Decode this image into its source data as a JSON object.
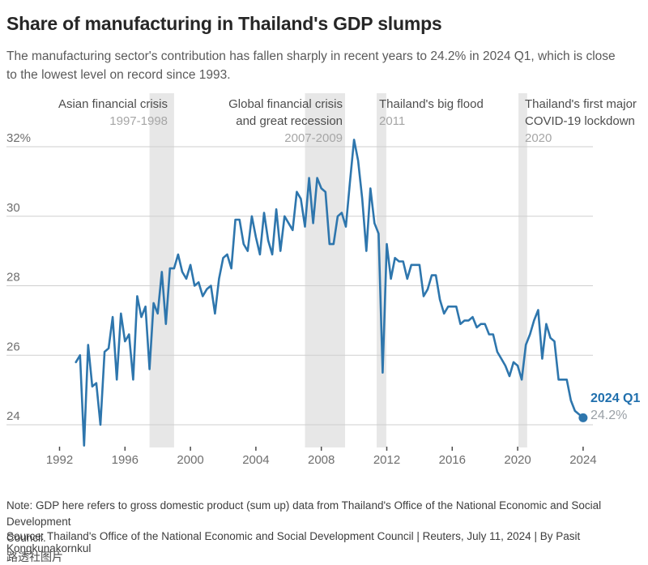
{
  "header": {
    "title": "Share of manufacturing in Thailand's GDP slumps",
    "subtitle": "The manufacturing sector's contribution has fallen sharply in recent years to 24.2% in 2024 Q1, which is close\nto the lowest level on record since 1993."
  },
  "footer": {
    "note": "Note: GDP here refers to gross domestic product (sum up) data from Thailand's Office of the National Economic and Social Development\nCouncil.",
    "source": "Source: Thailand's Office of the National Economic and Social Development Council | Reuters, July 11, 2024 | By Pasit Kongkunakornkul",
    "watermark": "路透社图片"
  },
  "chart_data": {
    "type": "line",
    "series_name": "Manufacturing share of Thailand's GDP (%)",
    "unit": "%",
    "x_start": 1993.0,
    "x_step": 0.25,
    "x_end": 2024.0,
    "frequency": "quarterly",
    "values": [
      25.8,
      26.0,
      23.4,
      26.3,
      25.1,
      25.2,
      24.0,
      26.1,
      26.2,
      27.1,
      25.3,
      27.2,
      26.4,
      26.6,
      25.3,
      27.7,
      27.1,
      27.4,
      25.6,
      27.5,
      27.2,
      28.4,
      26.9,
      28.5,
      28.5,
      28.9,
      28.4,
      28.2,
      28.6,
      28.0,
      28.1,
      27.7,
      27.9,
      28.0,
      27.2,
      28.2,
      28.8,
      28.9,
      28.5,
      29.9,
      29.9,
      29.2,
      29.0,
      30.0,
      29.4,
      28.9,
      30.1,
      29.3,
      28.9,
      30.2,
      29.0,
      30.0,
      29.8,
      29.6,
      30.7,
      30.5,
      29.7,
      31.1,
      29.8,
      31.1,
      30.8,
      30.7,
      29.2,
      29.2,
      30.0,
      30.1,
      29.7,
      31.0,
      32.2,
      31.6,
      30.5,
      29.0,
      30.8,
      29.8,
      29.5,
      25.5,
      29.2,
      28.2,
      28.8,
      28.7,
      28.7,
      28.2,
      28.6,
      28.6,
      28.6,
      27.7,
      27.9,
      28.3,
      28.3,
      27.6,
      27.2,
      27.4,
      27.4,
      27.4,
      26.9,
      27.0,
      27.0,
      27.1,
      26.8,
      26.9,
      26.9,
      26.6,
      26.6,
      26.1,
      25.9,
      25.7,
      25.4,
      25.8,
      25.7,
      25.3,
      26.3,
      26.6,
      27.0,
      27.3,
      25.9,
      26.9,
      26.5,
      26.4,
      25.3,
      25.3,
      25.3,
      24.7,
      24.4,
      24.3,
      24.2
    ],
    "yticks": [
      24,
      26,
      28,
      30,
      32
    ],
    "ytick_labels": [
      "24",
      "26",
      "28",
      "30",
      "32%"
    ],
    "ylim": [
      23.3,
      32.3
    ],
    "xticks": [
      1992,
      1996,
      2000,
      2004,
      2008,
      2012,
      2016,
      2020,
      2024
    ],
    "grid": "horizontal",
    "bands": [
      {
        "label": "Asian financial crisis",
        "years": "1997-1998",
        "from": 1997.5,
        "to": 1999.0
      },
      {
        "label": "Global financial crisis",
        "label2": "and great recession",
        "years": "2007-2009",
        "from": 2007.0,
        "to": 2009.45
      },
      {
        "label": "Thailand's big flood",
        "years": "2011",
        "from": 2011.38,
        "to": 2011.97
      },
      {
        "label": "Thailand's first major",
        "label2": "COVID-19 lockdown",
        "years": "2020",
        "from": 2020.05,
        "to": 2020.58
      }
    ],
    "end_label": {
      "line1": "2024 Q1",
      "line2": "24.2%"
    },
    "latest_point": {
      "x": 2024.0,
      "value": 24.2
    },
    "colors": {
      "line": "#2e76ad",
      "band": "#e7e7e7",
      "grid": "#cfcfcf",
      "tick": "#4a4a4a",
      "axis_text": "#6e6e6e",
      "accent_label": "#1f6fad"
    }
  }
}
